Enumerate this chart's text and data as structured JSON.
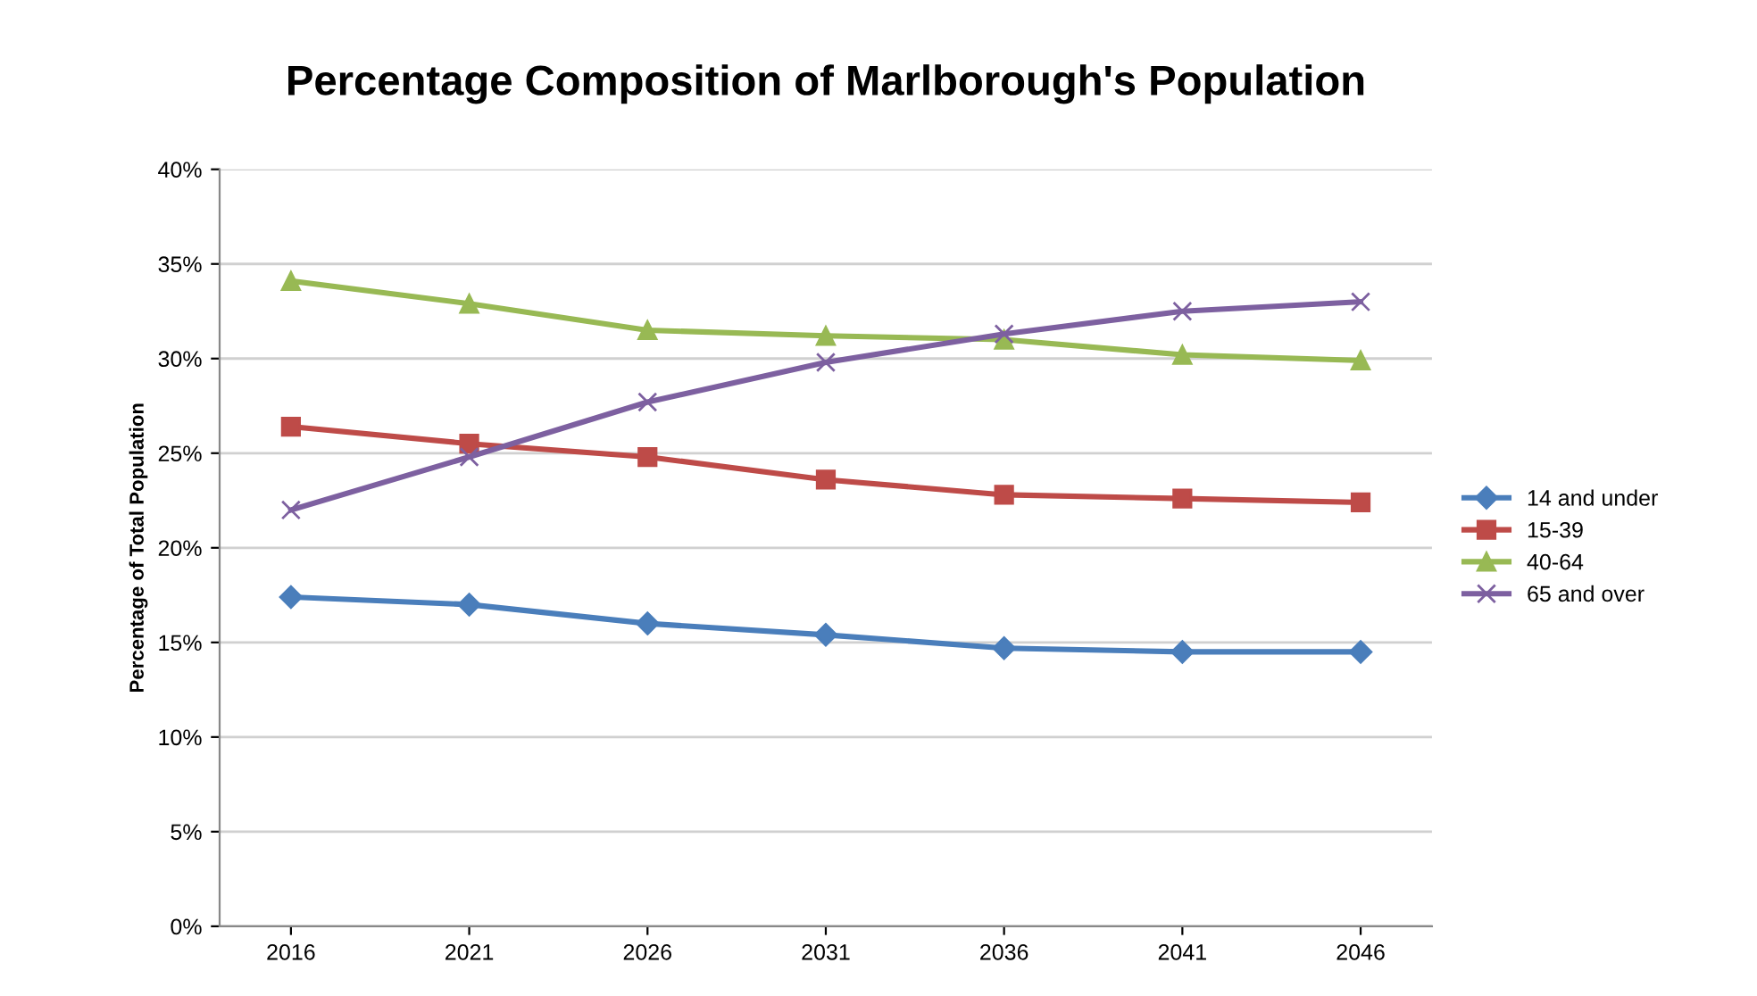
{
  "chart_data": {
    "type": "line",
    "title": "Percentage Composition of Marlborough's Population",
    "ylabel": "Percentage of Total Population",
    "categories": [
      "2016",
      "2021",
      "2026",
      "2031",
      "2036",
      "2041",
      "2046"
    ],
    "series": [
      {
        "name": "14 and under",
        "color": "#4a7ebb",
        "marker": "diamond",
        "values": [
          17.4,
          17.0,
          16.0,
          15.4,
          14.7,
          14.5,
          14.5
        ]
      },
      {
        "name": "15-39",
        "color": "#be4b48",
        "marker": "square",
        "values": [
          26.4,
          25.5,
          24.8,
          23.6,
          22.8,
          22.6,
          22.4
        ]
      },
      {
        "name": "40-64",
        "color": "#98b954",
        "marker": "triangle",
        "values": [
          34.1,
          32.9,
          31.5,
          31.2,
          31.0,
          30.2,
          29.9
        ]
      },
      {
        "name": "65 and over",
        "color": "#7d60a0",
        "marker": "cross",
        "values": [
          22.0,
          24.8,
          27.7,
          29.8,
          31.3,
          32.5,
          33.0
        ]
      }
    ],
    "ylim": [
      0,
      40
    ],
    "yticks": [
      {
        "value": 0,
        "label": "0%"
      },
      {
        "value": 5,
        "label": "5%"
      },
      {
        "value": 10,
        "label": "10%"
      },
      {
        "value": 15,
        "label": "15%"
      },
      {
        "value": 20,
        "label": "20%"
      },
      {
        "value": 25,
        "label": "25%"
      },
      {
        "value": 30,
        "label": "30%"
      },
      {
        "value": 35,
        "label": "35%"
      },
      {
        "value": 40,
        "label": "40%"
      }
    ],
    "grid": "y",
    "legend": "right",
    "line_style": "solid"
  }
}
